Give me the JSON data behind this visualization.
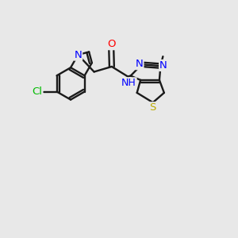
{
  "background_color": "#e8e8e8",
  "bond_color": "#1a1a1a",
  "atom_colors": {
    "Cl": "#00bb00",
    "N": "#0000ff",
    "O": "#ff0000",
    "S": "#bbaa00",
    "H": "#555555",
    "C": "#1a1a1a"
  },
  "figsize": [
    3.0,
    3.0
  ],
  "dpi": 100
}
